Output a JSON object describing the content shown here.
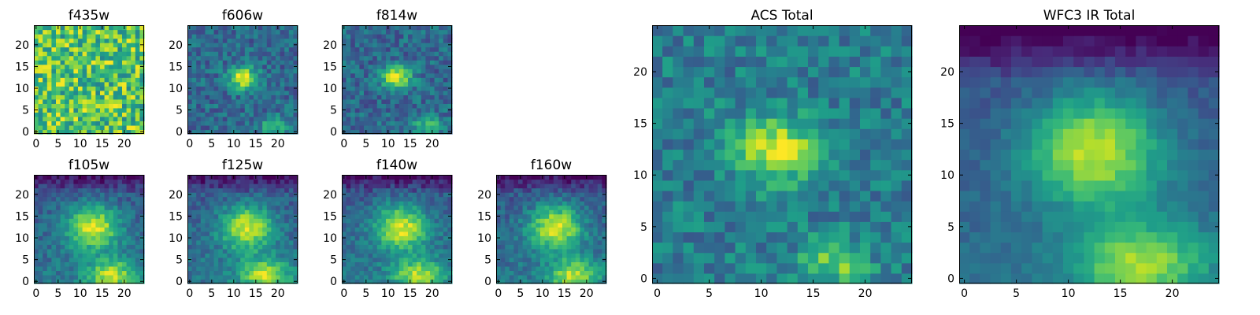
{
  "chart_data": [
    {
      "type": "heatmap",
      "title": "f435w",
      "xlim": [
        0,
        24
      ],
      "ylim": [
        0,
        24
      ],
      "xticks": [
        0,
        5,
        10,
        15,
        20
      ],
      "yticks": [
        0,
        5,
        10,
        15,
        20
      ],
      "grid": false,
      "colormap": "viridis",
      "pattern": "noise",
      "source_size_x": 25,
      "source_size_y": 25
    },
    {
      "type": "heatmap",
      "title": "f606w",
      "xlim": [
        0,
        24
      ],
      "ylim": [
        0,
        24
      ],
      "xticks": [
        0,
        5,
        10,
        15,
        20
      ],
      "yticks": [
        0,
        5,
        10,
        15,
        20
      ],
      "grid": false,
      "colormap": "viridis",
      "pattern": "optical",
      "source_size_x": 25,
      "source_size_y": 25
    },
    {
      "type": "heatmap",
      "title": "f814w",
      "xlim": [
        0,
        24
      ],
      "ylim": [
        0,
        24
      ],
      "xticks": [
        0,
        5,
        10,
        15,
        20
      ],
      "yticks": [
        0,
        5,
        10,
        15,
        20
      ],
      "grid": false,
      "colormap": "viridis",
      "pattern": "optical",
      "source_size_x": 25,
      "source_size_y": 25
    },
    {
      "type": "heatmap",
      "title": "f105w",
      "xlim": [
        0,
        24
      ],
      "ylim": [
        0,
        24
      ],
      "xticks": [
        0,
        5,
        10,
        15,
        20
      ],
      "yticks": [
        0,
        5,
        10,
        15,
        20
      ],
      "grid": false,
      "colormap": "viridis",
      "pattern": "ir",
      "source_size_x": 25,
      "source_size_y": 25
    },
    {
      "type": "heatmap",
      "title": "f125w",
      "xlim": [
        0,
        24
      ],
      "ylim": [
        0,
        24
      ],
      "xticks": [
        0,
        5,
        10,
        15,
        20
      ],
      "yticks": [
        0,
        5,
        10,
        15,
        20
      ],
      "grid": false,
      "colormap": "viridis",
      "pattern": "ir",
      "source_size_x": 25,
      "source_size_y": 25
    },
    {
      "type": "heatmap",
      "title": "f140w",
      "xlim": [
        0,
        24
      ],
      "ylim": [
        0,
        24
      ],
      "xticks": [
        0,
        5,
        10,
        15,
        20
      ],
      "yticks": [
        0,
        5,
        10,
        15,
        20
      ],
      "grid": false,
      "colormap": "viridis",
      "pattern": "ir",
      "source_size_x": 25,
      "source_size_y": 25
    },
    {
      "type": "heatmap",
      "title": "f160w",
      "xlim": [
        0,
        24
      ],
      "ylim": [
        0,
        24
      ],
      "xticks": [
        0,
        5,
        10,
        15,
        20
      ],
      "yticks": [
        0,
        5,
        10,
        15,
        20
      ],
      "grid": false,
      "colormap": "viridis",
      "pattern": "ir",
      "source_size_x": 25,
      "source_size_y": 25
    },
    {
      "type": "heatmap",
      "title": "ACS Total",
      "xlim": [
        0,
        24
      ],
      "ylim": [
        0,
        24
      ],
      "xticks": [
        0,
        5,
        10,
        15,
        20
      ],
      "yticks": [
        0,
        5,
        10,
        15,
        20
      ],
      "grid": false,
      "colormap": "viridis",
      "pattern": "acs",
      "source_size_x": 25,
      "source_size_y": 25
    },
    {
      "type": "heatmap",
      "title": "WFC3 IR Total",
      "xlim": [
        0,
        24
      ],
      "ylim": [
        0,
        24
      ],
      "xticks": [
        0,
        5,
        10,
        15,
        20
      ],
      "yticks": [
        0,
        5,
        10,
        15,
        20
      ],
      "grid": false,
      "colormap": "viridis",
      "pattern": "ir_total",
      "source_size_x": 25,
      "source_size_y": 25
    }
  ],
  "colors": {
    "viridis_stops": [
      "#440154",
      "#482878",
      "#3e4a89",
      "#31688e",
      "#26828e",
      "#1f9e89",
      "#35b779",
      "#6ece58",
      "#b5de2b",
      "#fde725"
    ]
  }
}
